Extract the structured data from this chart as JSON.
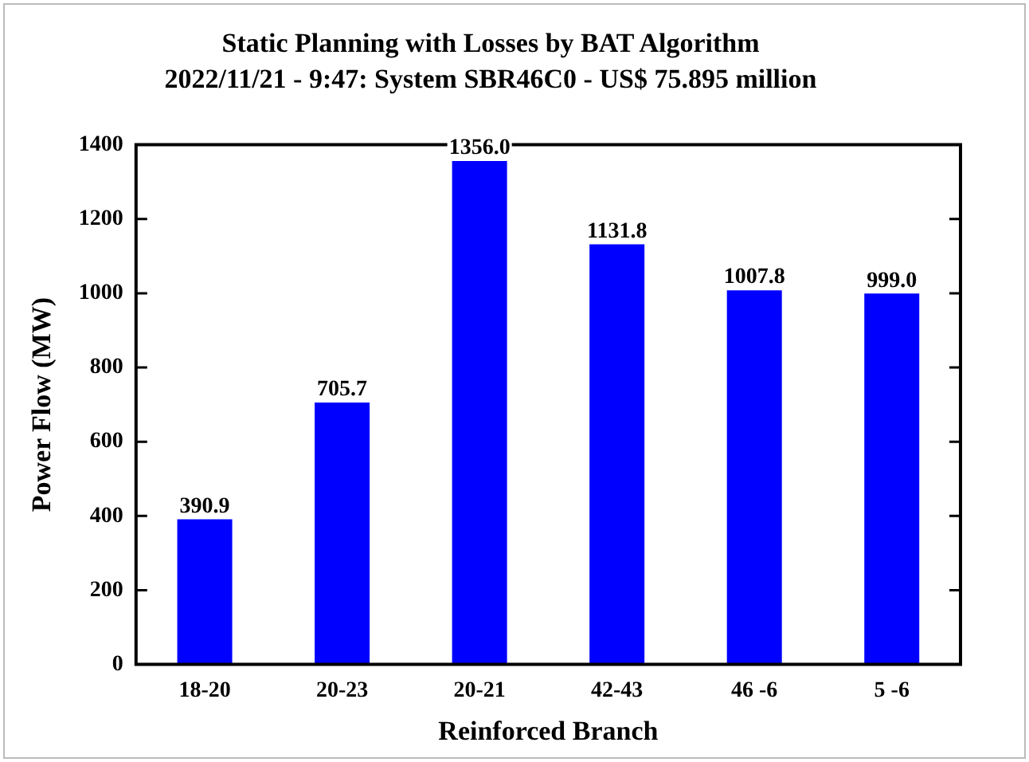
{
  "chart_data": {
    "type": "bar",
    "title": "Static Planning with Losses by BAT Algorithm",
    "subtitle": "2022/11/21 - 9:47: System SBR46C0 - US$ 75.895 million",
    "xlabel": "Reinforced Branch",
    "ylabel": "Power Flow (MW)",
    "categories": [
      "18-20",
      "20-23",
      "20-21",
      "42-43",
      "46 -6",
      "5 -6"
    ],
    "values": [
      390.9,
      705.7,
      1356.0,
      1131.8,
      1007.8,
      999.0
    ],
    "value_labels": [
      "390.9",
      "705.7",
      "1356.0",
      "1131.8",
      "1007.8",
      "999.0"
    ],
    "color": "#0000ff",
    "ylim": [
      0,
      1400
    ],
    "yticks": [
      0,
      200,
      400,
      600,
      800,
      1000,
      1200,
      1400
    ],
    "grid": false,
    "legend": false
  }
}
